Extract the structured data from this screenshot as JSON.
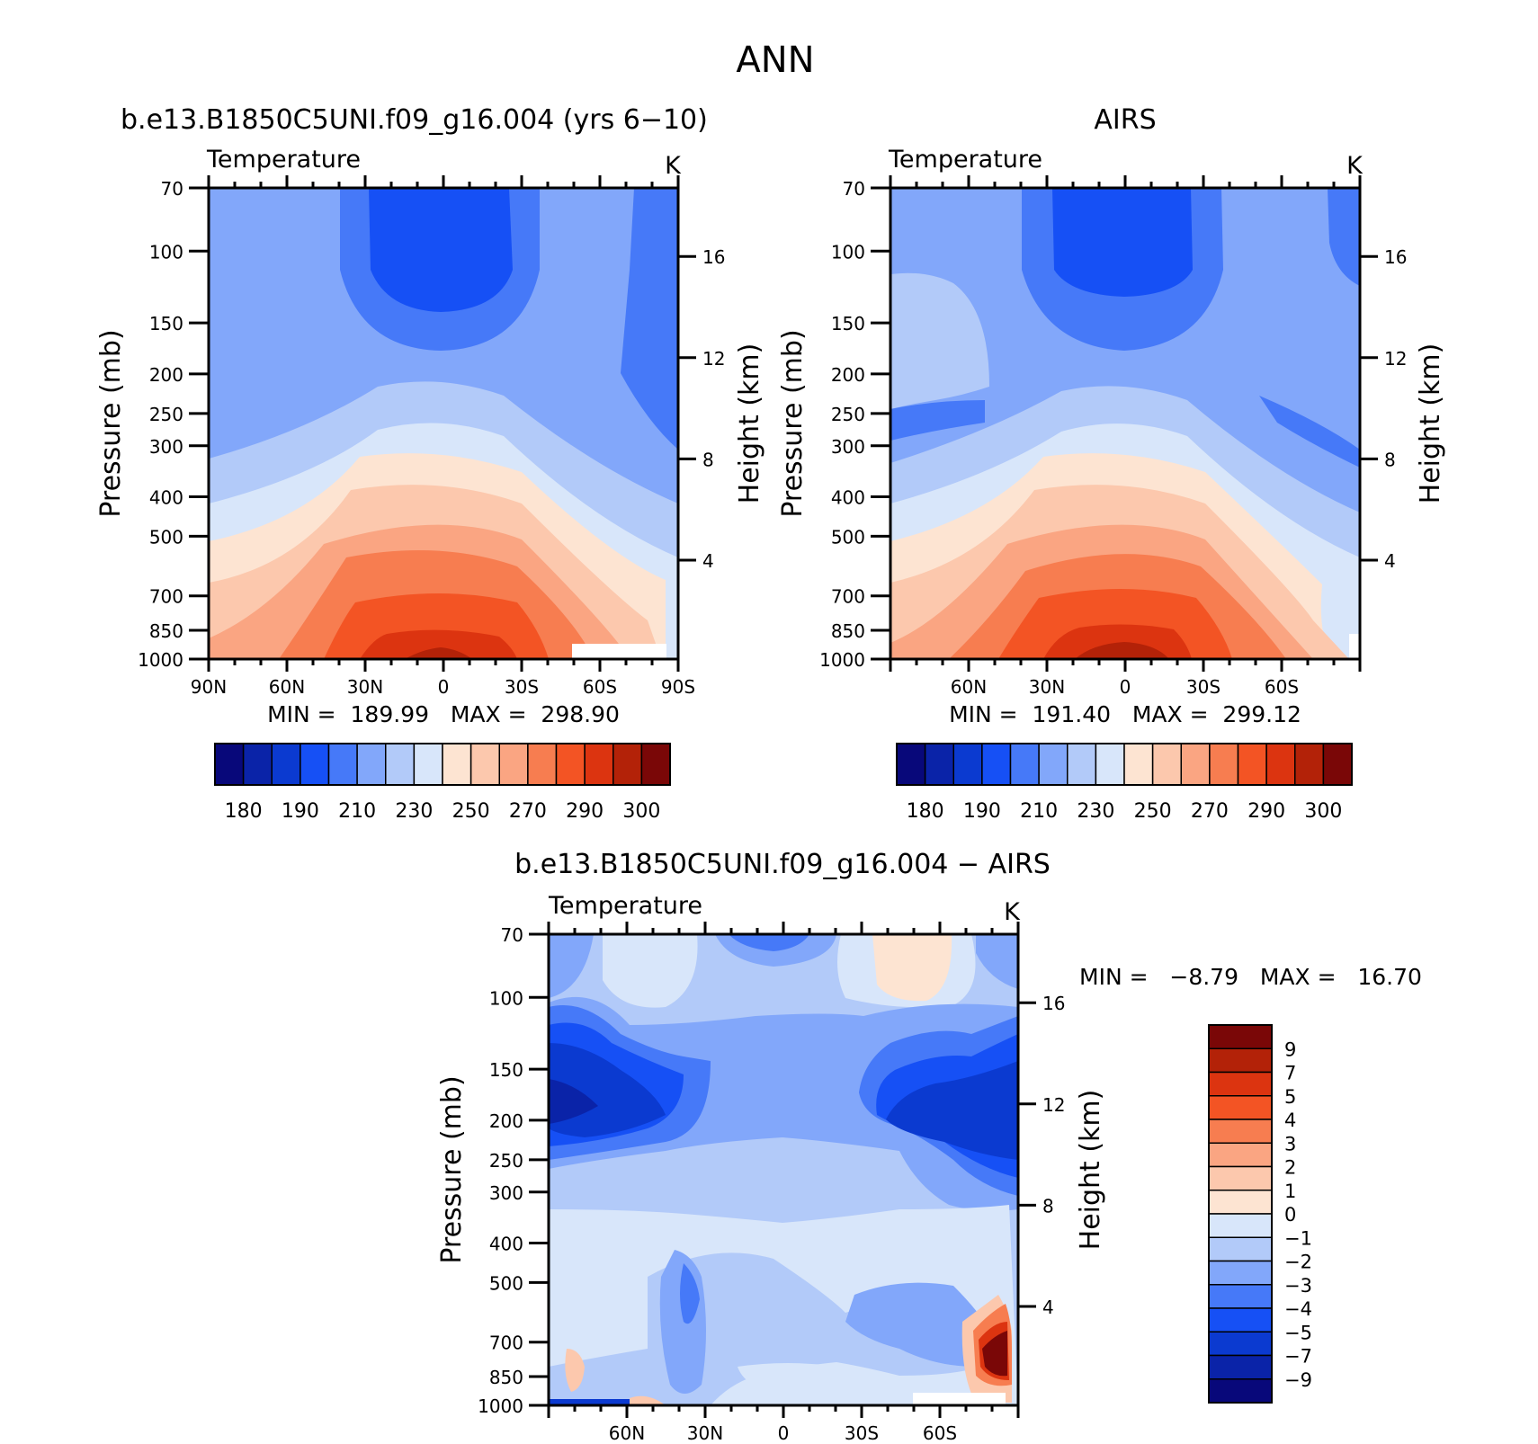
{
  "figure_title": "ANN",
  "chart_data": [
    {
      "type": "heatmap",
      "title": "b.e13.B1850C5UNI.f09_g16.004 (yrs 6−10)",
      "subtitle": "Temperature",
      "units": "K",
      "ylabel": "Pressure (mb)",
      "y2label": "Height (km)",
      "y_ticks": [
        70,
        100,
        150,
        200,
        250,
        300,
        400,
        500,
        700,
        850,
        1000
      ],
      "y2_ticks": [
        4,
        8,
        12,
        16
      ],
      "x_ticks": [
        "90N",
        "60N",
        "30N",
        "0",
        "30S",
        "60S",
        "90S"
      ],
      "stats": "MIN =  189.99   MAX =  298.90",
      "min": 189.99,
      "max": 298.9,
      "colorbar": {
        "orientation": "horizontal",
        "labels": [
          "180",
          "190",
          "210",
          "230",
          "250",
          "270",
          "290",
          "300"
        ]
      }
    },
    {
      "type": "heatmap",
      "title": "AIRS",
      "subtitle": "Temperature",
      "units": "K",
      "ylabel": "Pressure (mb)",
      "y2label": "Height (km)",
      "y_ticks": [
        70,
        100,
        150,
        200,
        250,
        300,
        400,
        500,
        700,
        850,
        1000
      ],
      "y2_ticks": [
        4,
        8,
        12,
        16
      ],
      "x_ticks": [
        "60N",
        "30N",
        "0",
        "30S",
        "60S"
      ],
      "stats": "MIN =  191.40   MAX =  299.12",
      "min": 191.4,
      "max": 299.12,
      "colorbar": {
        "orientation": "horizontal",
        "labels": [
          "180",
          "190",
          "210",
          "230",
          "250",
          "270",
          "290",
          "300"
        ]
      }
    },
    {
      "type": "heatmap",
      "title": "b.e13.B1850C5UNI.f09_g16.004 − AIRS",
      "subtitle": "Temperature",
      "units": "K",
      "ylabel": "Pressure (mb)",
      "y2label": "Height (km)",
      "y_ticks": [
        70,
        100,
        150,
        200,
        250,
        300,
        400,
        500,
        700,
        850,
        1000
      ],
      "y2_ticks": [
        4,
        8,
        12,
        16
      ],
      "x_ticks": [
        "60N",
        "30N",
        "0",
        "30S",
        "60S"
      ],
      "stats": "MIN =   −8.79   MAX =   16.70",
      "min": -8.79,
      "max": 16.7,
      "colorbar": {
        "orientation": "vertical",
        "labels": [
          "9",
          "7",
          "5",
          "4",
          "3",
          "2",
          "1",
          "0",
          "−1",
          "−2",
          "−3",
          "−4",
          "−5",
          "−7",
          "−9"
        ]
      }
    }
  ],
  "palette": {
    "temperature": [
      "#08087a",
      "#0a23a8",
      "#0b3ad0",
      "#1650f5",
      "#4679f8",
      "#82a7fa",
      "#b2caf9",
      "#d8e6fa",
      "#fde4d2",
      "#fcc8ad",
      "#faa582",
      "#f77d50",
      "#f35424",
      "#dc3410",
      "#b32208",
      "#7a0707"
    ],
    "difference": [
      "#7a0707",
      "#b32208",
      "#dc3410",
      "#f35424",
      "#f77d50",
      "#faa582",
      "#fcc8ad",
      "#fde4d2",
      "#d8e6fa",
      "#b2caf9",
      "#82a7fa",
      "#4679f8",
      "#1650f5",
      "#0b3ad0",
      "#0a23a8",
      "#08087a"
    ]
  }
}
